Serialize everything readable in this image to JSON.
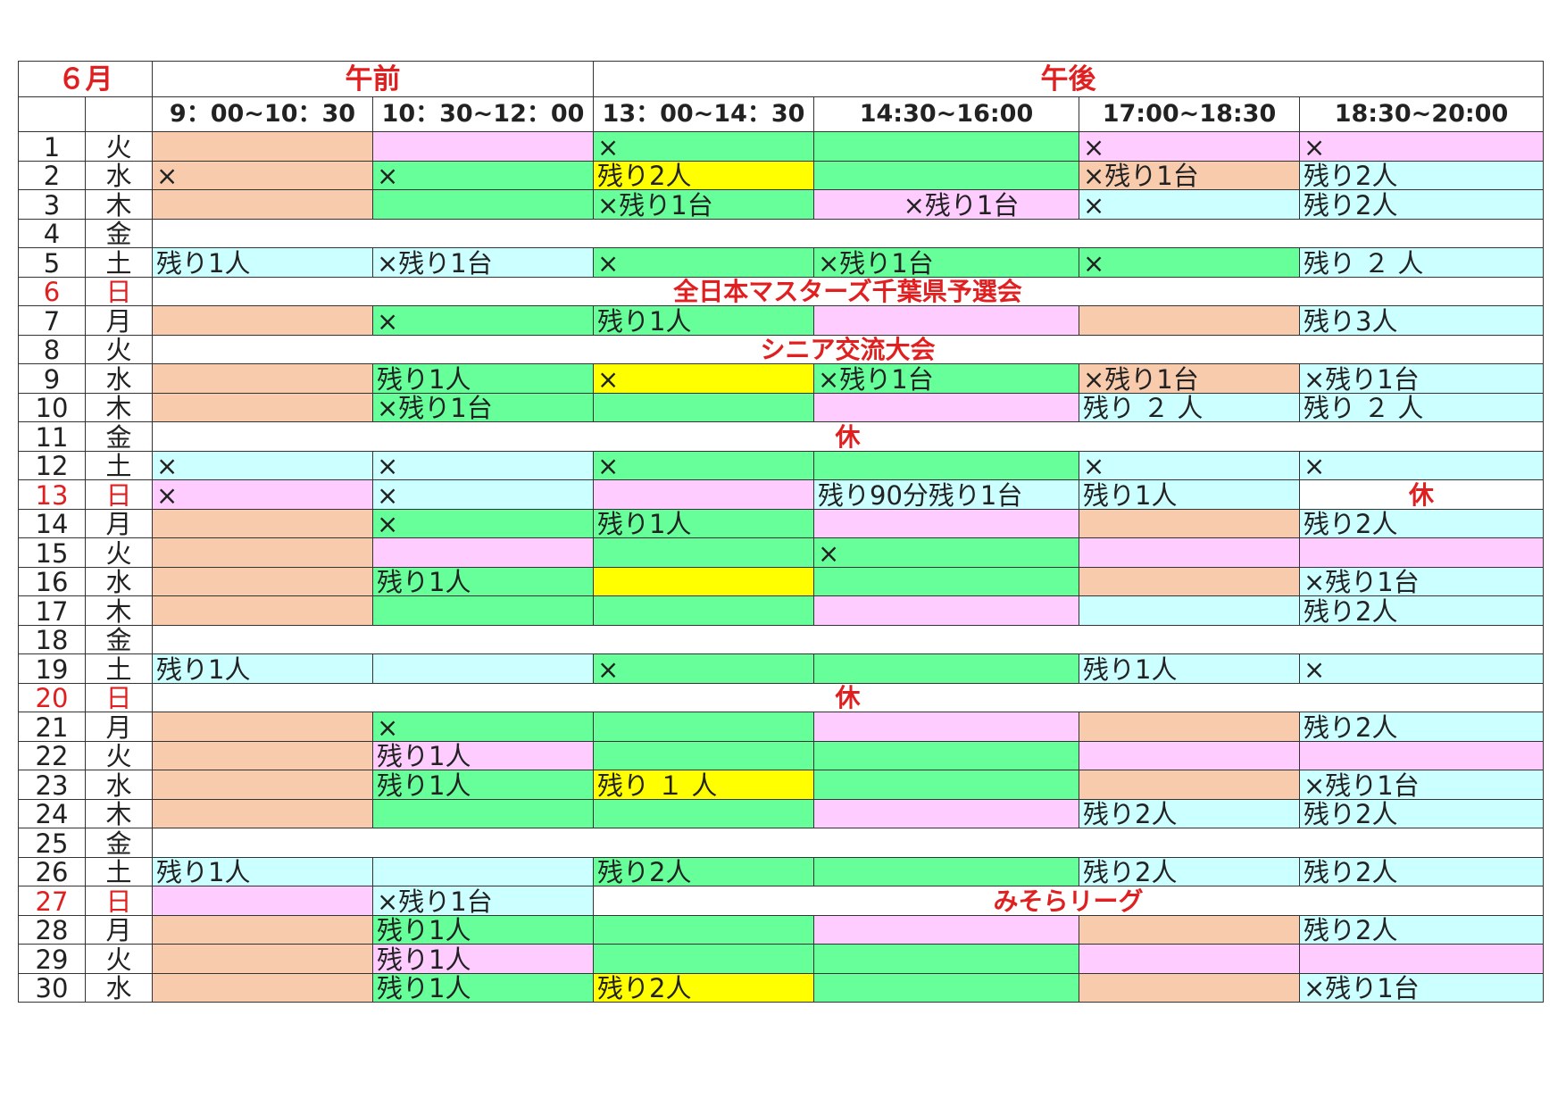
{
  "header": {
    "month": "６月",
    "am_label": "午前",
    "pm_label": "午後",
    "slots": [
      "9：00~10：30",
      "10：30~12：00",
      "13：00~14：30",
      "14:30~16:00",
      "17:00~18:30",
      "18:30~20:00"
    ]
  },
  "colors": {
    "o": "#f8cbad",
    "p": "#ffccff",
    "g": "#66ff99",
    "c": "#ccffff",
    "y": "#ffff00",
    "w": "#ffffff",
    "red": "#e02020"
  },
  "rows": [
    {
      "day": "1",
      "dow": "火",
      "sun": false,
      "cells": [
        {
          "c": "o",
          "t": ""
        },
        {
          "c": "p",
          "t": ""
        },
        {
          "c": "g",
          "t": "×"
        },
        {
          "c": "g",
          "t": ""
        },
        {
          "c": "p",
          "t": "×"
        },
        {
          "c": "p",
          "t": "×"
        }
      ]
    },
    {
      "day": "2",
      "dow": "水",
      "sun": false,
      "cells": [
        {
          "c": "o",
          "t": "×"
        },
        {
          "c": "g",
          "t": "×"
        },
        {
          "c": "y",
          "t": "残り2人"
        },
        {
          "c": "g",
          "t": ""
        },
        {
          "c": "o",
          "t": "×残り1台"
        },
        {
          "c": "c",
          "t": "残り2人"
        }
      ]
    },
    {
      "day": "3",
      "dow": "木",
      "sun": false,
      "cells": [
        {
          "c": "o",
          "t": ""
        },
        {
          "c": "g",
          "t": ""
        },
        {
          "c": "g",
          "t": "×残り1台"
        },
        {
          "c": "p",
          "t": "　×残り1台",
          "center": true
        },
        {
          "c": "c",
          "t": "×"
        },
        {
          "c": "c",
          "t": "残り2人"
        }
      ]
    },
    {
      "day": "4",
      "dow": "金",
      "sun": false,
      "banner": ""
    },
    {
      "day": "5",
      "dow": "土",
      "sun": false,
      "cells": [
        {
          "c": "c",
          "t": "残り1人"
        },
        {
          "c": "c",
          "t": "×残り1台"
        },
        {
          "c": "g",
          "t": "×"
        },
        {
          "c": "g",
          "t": "×残り1台"
        },
        {
          "c": "g",
          "t": "×"
        },
        {
          "c": "c",
          "t": "残り ２ 人"
        }
      ]
    },
    {
      "day": "6",
      "dow": "日",
      "sun": true,
      "banner": "全日本マスターズ千葉県予選会"
    },
    {
      "day": "7",
      "dow": "月",
      "sun": false,
      "cells": [
        {
          "c": "o",
          "t": ""
        },
        {
          "c": "g",
          "t": "×"
        },
        {
          "c": "g",
          "t": "残り1人"
        },
        {
          "c": "p",
          "t": ""
        },
        {
          "c": "o",
          "t": ""
        },
        {
          "c": "c",
          "t": "残り3人"
        }
      ]
    },
    {
      "day": "8",
      "dow": "火",
      "sun": false,
      "banner": "シニア交流大会"
    },
    {
      "day": "9",
      "dow": "水",
      "sun": false,
      "cells": [
        {
          "c": "o",
          "t": ""
        },
        {
          "c": "g",
          "t": "残り1人"
        },
        {
          "c": "y",
          "t": "×"
        },
        {
          "c": "g",
          "t": "×残り1台"
        },
        {
          "c": "o",
          "t": "×残り1台"
        },
        {
          "c": "c",
          "t": "×残り1台"
        }
      ]
    },
    {
      "day": "10",
      "dow": "木",
      "sun": false,
      "cells": [
        {
          "c": "o",
          "t": ""
        },
        {
          "c": "g",
          "t": "×残り1台"
        },
        {
          "c": "g",
          "t": ""
        },
        {
          "c": "p",
          "t": ""
        },
        {
          "c": "c",
          "t": "残り ２ 人"
        },
        {
          "c": "c",
          "t": "残り ２ 人"
        }
      ]
    },
    {
      "day": "11",
      "dow": "金",
      "sun": false,
      "banner": "休"
    },
    {
      "day": "12",
      "dow": "土",
      "sun": false,
      "cells": [
        {
          "c": "c",
          "t": "×"
        },
        {
          "c": "c",
          "t": "×"
        },
        {
          "c": "g",
          "t": "×"
        },
        {
          "c": "g",
          "t": ""
        },
        {
          "c": "c",
          "t": "×"
        },
        {
          "c": "c",
          "t": "×"
        }
      ]
    },
    {
      "day": "13",
      "dow": "日",
      "sun": true,
      "cells": [
        {
          "c": "p",
          "t": "×"
        },
        {
          "c": "c",
          "t": "×"
        },
        {
          "c": "p",
          "t": ""
        },
        {
          "c": "c",
          "t": "残り90分残り1台"
        },
        {
          "c": "c",
          "t": "残り1人"
        }
      ],
      "last": "休"
    },
    {
      "day": "14",
      "dow": "月",
      "sun": false,
      "cells": [
        {
          "c": "o",
          "t": ""
        },
        {
          "c": "g",
          "t": "×"
        },
        {
          "c": "g",
          "t": "残り1人"
        },
        {
          "c": "p",
          "t": ""
        },
        {
          "c": "o",
          "t": ""
        },
        {
          "c": "c",
          "t": "残り2人"
        }
      ]
    },
    {
      "day": "15",
      "dow": "火",
      "sun": false,
      "cells": [
        {
          "c": "o",
          "t": ""
        },
        {
          "c": "p",
          "t": ""
        },
        {
          "c": "g",
          "t": ""
        },
        {
          "c": "g",
          "t": "×"
        },
        {
          "c": "p",
          "t": ""
        },
        {
          "c": "p",
          "t": ""
        }
      ]
    },
    {
      "day": "16",
      "dow": "水",
      "sun": false,
      "cells": [
        {
          "c": "o",
          "t": ""
        },
        {
          "c": "g",
          "t": "残り1人"
        },
        {
          "c": "y",
          "t": ""
        },
        {
          "c": "g",
          "t": ""
        },
        {
          "c": "o",
          "t": ""
        },
        {
          "c": "c",
          "t": "×残り1台"
        }
      ]
    },
    {
      "day": "17",
      "dow": "木",
      "sun": false,
      "cells": [
        {
          "c": "o",
          "t": ""
        },
        {
          "c": "g",
          "t": ""
        },
        {
          "c": "g",
          "t": ""
        },
        {
          "c": "p",
          "t": ""
        },
        {
          "c": "c",
          "t": ""
        },
        {
          "c": "c",
          "t": "残り2人"
        }
      ]
    },
    {
      "day": "18",
      "dow": "金",
      "sun": false,
      "banner": ""
    },
    {
      "day": "19",
      "dow": "土",
      "sun": false,
      "cells": [
        {
          "c": "c",
          "t": "残り1人"
        },
        {
          "c": "c",
          "t": ""
        },
        {
          "c": "g",
          "t": "×"
        },
        {
          "c": "g",
          "t": ""
        },
        {
          "c": "c",
          "t": "残り1人"
        },
        {
          "c": "c",
          "t": "×"
        }
      ]
    },
    {
      "day": "20",
      "dow": "日",
      "sun": true,
      "banner": "休"
    },
    {
      "day": "21",
      "dow": "月",
      "sun": false,
      "cells": [
        {
          "c": "o",
          "t": ""
        },
        {
          "c": "g",
          "t": "×"
        },
        {
          "c": "g",
          "t": ""
        },
        {
          "c": "p",
          "t": ""
        },
        {
          "c": "o",
          "t": ""
        },
        {
          "c": "c",
          "t": "残り2人"
        }
      ]
    },
    {
      "day": "22",
      "dow": "火",
      "sun": false,
      "cells": [
        {
          "c": "o",
          "t": ""
        },
        {
          "c": "p",
          "t": "残り1人"
        },
        {
          "c": "g",
          "t": ""
        },
        {
          "c": "g",
          "t": ""
        },
        {
          "c": "p",
          "t": ""
        },
        {
          "c": "p",
          "t": ""
        }
      ]
    },
    {
      "day": "23",
      "dow": "水",
      "sun": false,
      "cells": [
        {
          "c": "o",
          "t": ""
        },
        {
          "c": "g",
          "t": "残り1人"
        },
        {
          "c": "y",
          "t": "残り １ 人"
        },
        {
          "c": "g",
          "t": ""
        },
        {
          "c": "o",
          "t": ""
        },
        {
          "c": "c",
          "t": "×残り1台"
        }
      ]
    },
    {
      "day": "24",
      "dow": "木",
      "sun": false,
      "cells": [
        {
          "c": "o",
          "t": ""
        },
        {
          "c": "g",
          "t": ""
        },
        {
          "c": "g",
          "t": ""
        },
        {
          "c": "p",
          "t": ""
        },
        {
          "c": "c",
          "t": "残り2人"
        },
        {
          "c": "c",
          "t": "残り2人"
        }
      ]
    },
    {
      "day": "25",
      "dow": "金",
      "sun": false,
      "banner": ""
    },
    {
      "day": "26",
      "dow": "土",
      "sun": false,
      "cells": [
        {
          "c": "c",
          "t": "残り1人"
        },
        {
          "c": "c",
          "t": ""
        },
        {
          "c": "g",
          "t": "残り2人"
        },
        {
          "c": "g",
          "t": ""
        },
        {
          "c": "c",
          "t": "残り2人"
        },
        {
          "c": "c",
          "t": "残り2人"
        }
      ]
    },
    {
      "day": "27",
      "dow": "日",
      "sun": true,
      "cells": [
        {
          "c": "p",
          "t": ""
        },
        {
          "c": "c",
          "t": "×残り1台"
        }
      ],
      "span_rest": "みそらリーグ"
    },
    {
      "day": "28",
      "dow": "月",
      "sun": false,
      "cells": [
        {
          "c": "o",
          "t": ""
        },
        {
          "c": "g",
          "t": "残り1人"
        },
        {
          "c": "g",
          "t": ""
        },
        {
          "c": "p",
          "t": ""
        },
        {
          "c": "o",
          "t": ""
        },
        {
          "c": "c",
          "t": "残り2人"
        }
      ]
    },
    {
      "day": "29",
      "dow": "火",
      "sun": false,
      "cells": [
        {
          "c": "o",
          "t": ""
        },
        {
          "c": "p",
          "t": "残り1人"
        },
        {
          "c": "g",
          "t": ""
        },
        {
          "c": "g",
          "t": ""
        },
        {
          "c": "p",
          "t": ""
        },
        {
          "c": "p",
          "t": ""
        }
      ]
    },
    {
      "day": "30",
      "dow": "水",
      "sun": false,
      "cells": [
        {
          "c": "o",
          "t": ""
        },
        {
          "c": "g",
          "t": "残り1人"
        },
        {
          "c": "y",
          "t": "残り2人"
        },
        {
          "c": "g",
          "t": ""
        },
        {
          "c": "o",
          "t": ""
        },
        {
          "c": "c",
          "t": "×残り1台"
        }
      ]
    }
  ]
}
